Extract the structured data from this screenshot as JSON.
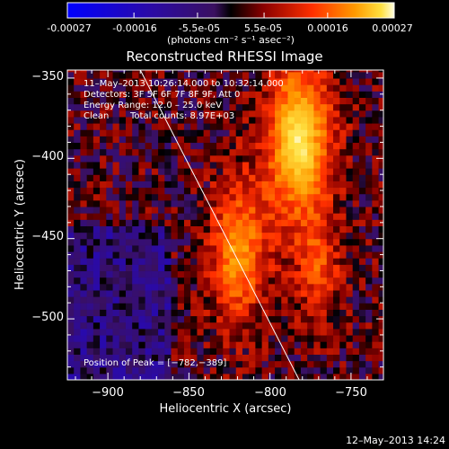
{
  "colorbar": {
    "ticks": [
      "-0.00027",
      "-0.00016",
      "-5.5e-05",
      "5.5e-05",
      "0.00016",
      "0.00027"
    ],
    "units": "(photons cm⁻² s⁻¹ asec⁻²)",
    "range": [
      -0.00027,
      0.00027
    ]
  },
  "chart_data": {
    "type": "heatmap",
    "title": "Reconstructed RHESSI Image",
    "xlabel": "Heliocentric X (arcsec)",
    "ylabel": "Heliocentric Y (arcsec)",
    "xlim": [
      -925,
      -730
    ],
    "ylim": [
      -538,
      -345
    ],
    "xticks": [
      -900,
      -850,
      -800,
      -750
    ],
    "yticks": [
      -350,
      -400,
      -450,
      -500
    ],
    "xtick_labels": [
      "−900",
      "−850",
      "−800",
      "−750"
    ],
    "ytick_labels": [
      "−350",
      "−400",
      "−450",
      "−500"
    ],
    "annotations": {
      "time": "11–May–2013 10:26:14.000 to 10:32:14.000",
      "detectors": "Detectors: 3F 5F 6F 7F 8F 9F, Att 0",
      "energy": "Energy Range: 12.0 – 25.0 keV",
      "method": "Clean",
      "counts": "Total counts: 8.97E+03",
      "peak": "Position of Peak = [−782,−389]"
    },
    "peak": [
      -782,
      -389
    ],
    "limb_line": {
      "x": [
        -880,
        -782
      ],
      "y": [
        -345,
        -538
      ]
    }
  },
  "footer": {
    "timestamp": "12–May–2013 14:24"
  }
}
